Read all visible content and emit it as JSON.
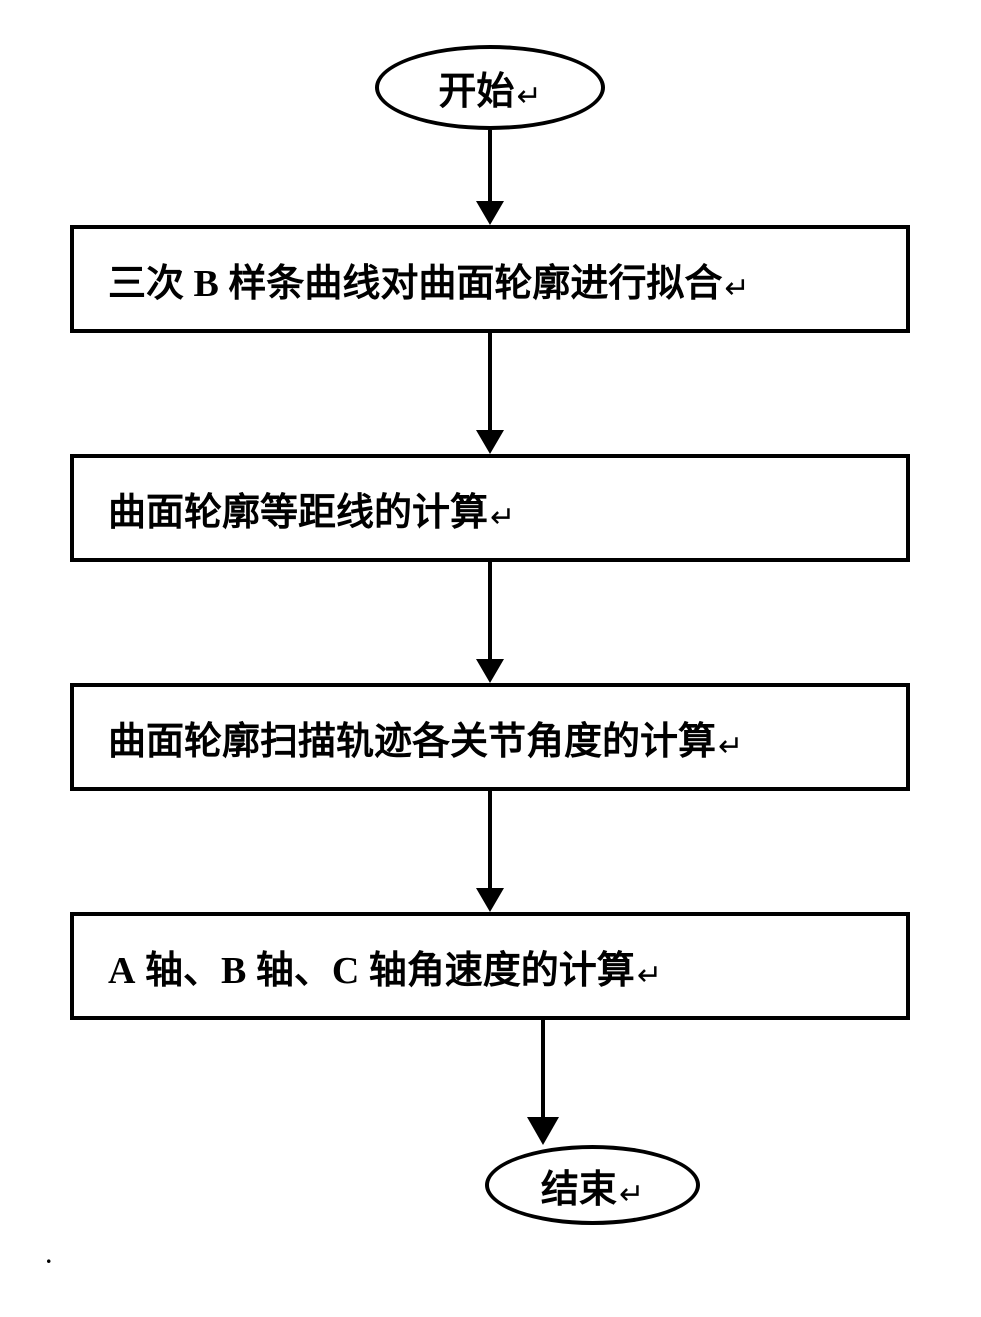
{
  "flowchart": {
    "start": {
      "label": "开始"
    },
    "steps": [
      {
        "label_before": "三次 ",
        "label_latin": "B",
        "label_after": " 样条曲线对曲面轮廓进行拟合"
      },
      {
        "label_before": "曲面轮廓等距线的计算",
        "label_latin": "",
        "label_after": ""
      },
      {
        "label_before": "曲面轮廓扫描轨迹各关节角度的计算",
        "label_latin": "",
        "label_after": ""
      },
      {
        "label_before": "",
        "label_latin": "A",
        "label_mid1": " 轴、",
        "label_latin2": "B",
        "label_mid2": " 轴、",
        "label_latin3": "C",
        "label_after": " 轴角速度的计算"
      }
    ],
    "end": {
      "label": "结束"
    },
    "arrows": {
      "h1": 72,
      "h2": 98,
      "h3": 98,
      "h4": 98,
      "h5": 98
    },
    "colors": {
      "border": "#000000",
      "background": "#ffffff",
      "text": "#000000"
    },
    "crlf_glyph": "↵"
  },
  "footer_dot": "."
}
